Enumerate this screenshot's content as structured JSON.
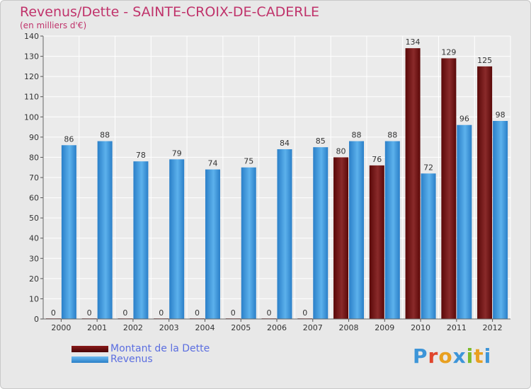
{
  "header": {
    "title": "Revenus/Dette - SAINTE-CROIX-DE-CADERLE",
    "subtitle": "(en milliers d'€)"
  },
  "logo": {
    "text": "Proxiti"
  },
  "colors": {
    "dette": "#6b0a0a",
    "revenus": "#3d95d8",
    "title": "#c0336b",
    "legend_text": "#5b6ee0"
  },
  "chart_data": {
    "type": "bar",
    "categories": [
      "2000",
      "2001",
      "2002",
      "2003",
      "2004",
      "2005",
      "2006",
      "2007",
      "2008",
      "2009",
      "2010",
      "2011",
      "2012"
    ],
    "series": [
      {
        "name": "Montant de la Dette",
        "values": [
          0,
          0,
          0,
          0,
          0,
          0,
          0,
          0,
          80,
          76,
          134,
          129,
          125
        ]
      },
      {
        "name": "Revenus",
        "values": [
          86,
          88,
          78,
          79,
          74,
          75,
          84,
          85,
          88,
          88,
          72,
          96,
          98
        ]
      }
    ],
    "ylim": [
      0,
      140
    ],
    "yticks": [
      0,
      10,
      20,
      30,
      40,
      50,
      60,
      70,
      80,
      90,
      100,
      110,
      120,
      130,
      140
    ],
    "grid": true,
    "legend_position": "bottom-left"
  }
}
